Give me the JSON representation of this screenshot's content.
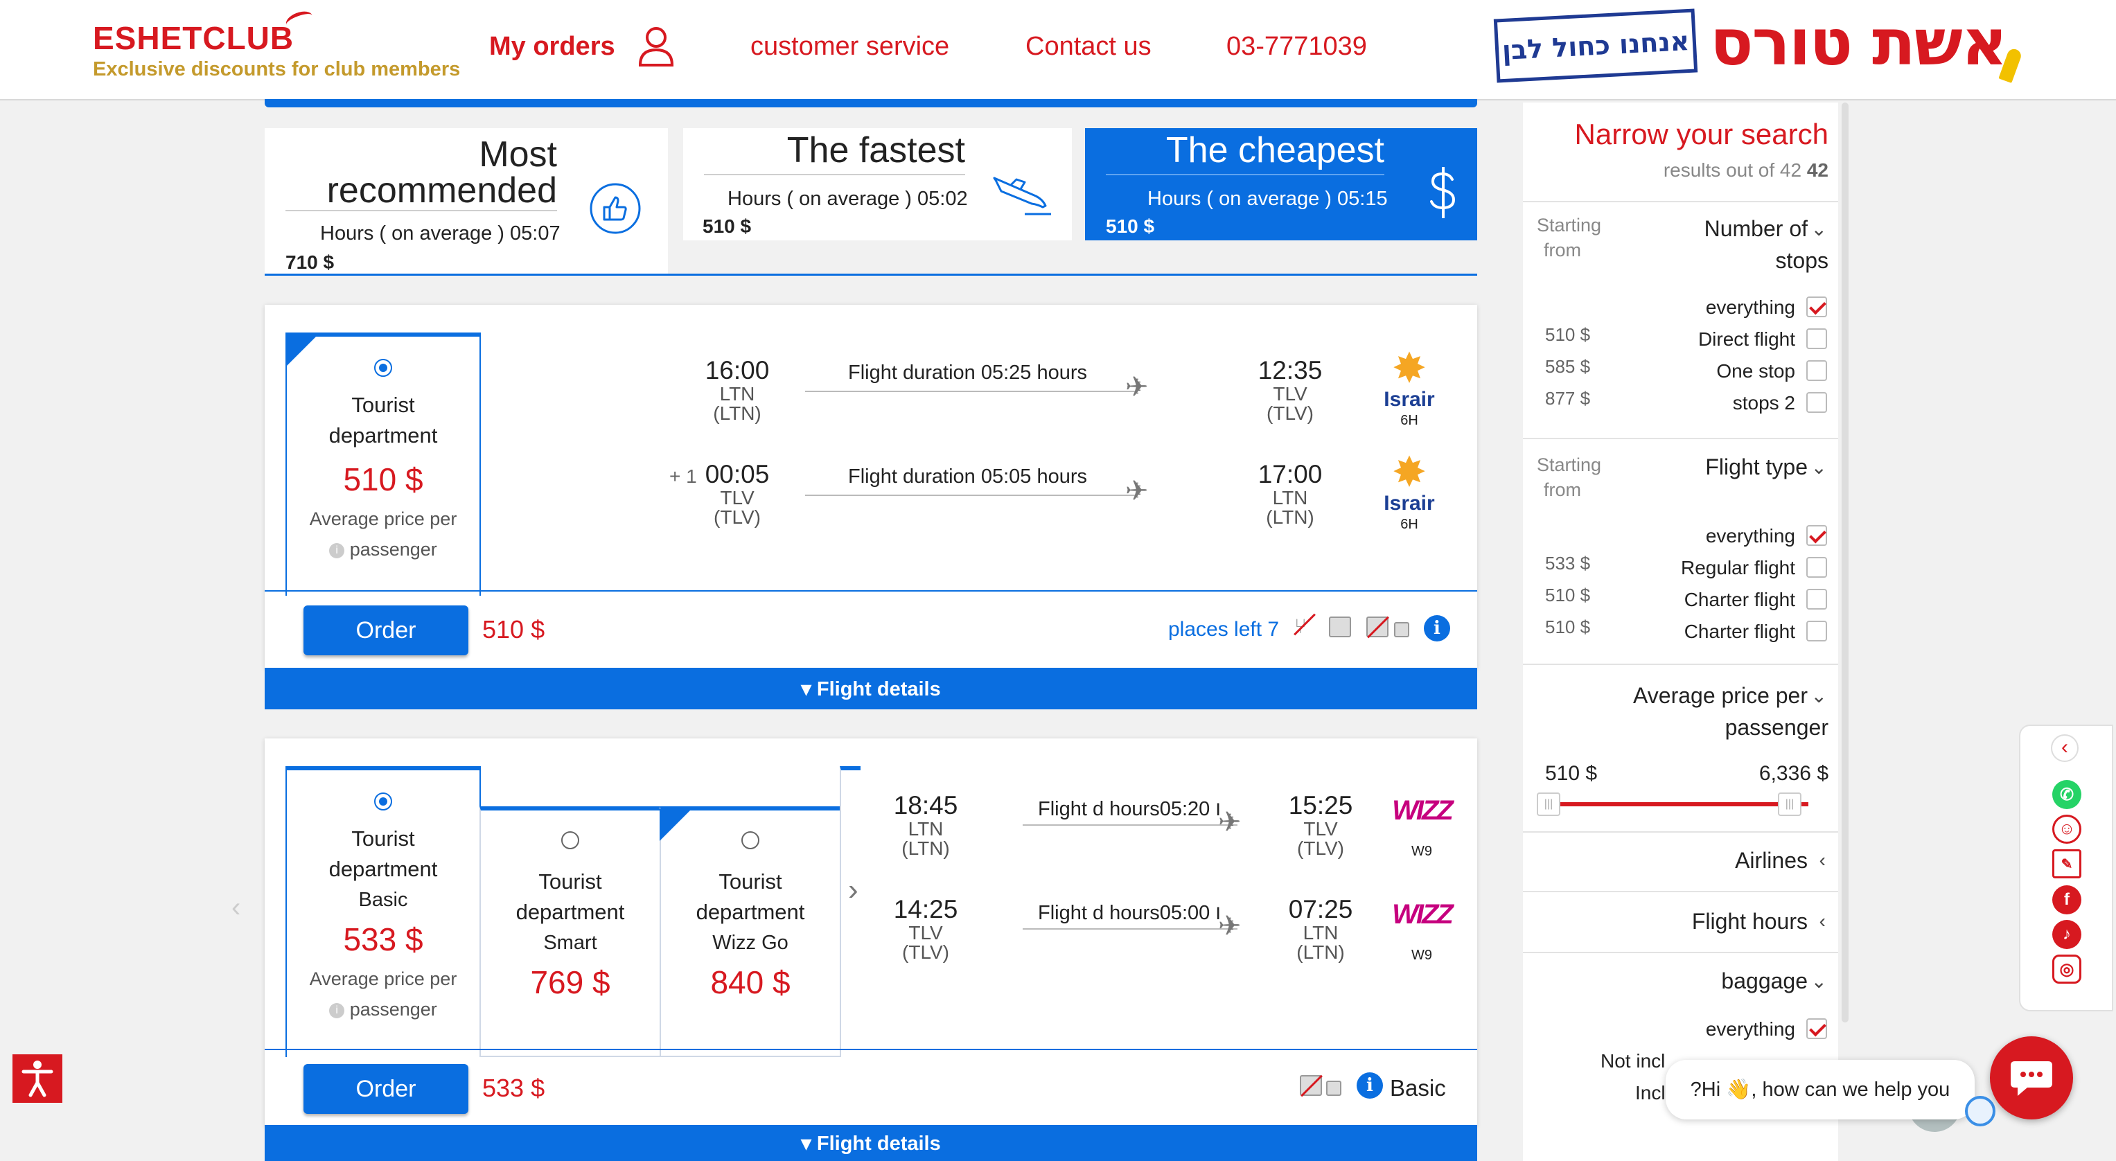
{
  "header": {
    "logo_main": "ESHETCLUB",
    "logo_sub": "Exclusive discounts for club members",
    "my_orders": "My orders",
    "customer_service": "customer service",
    "contact_us": "Contact us",
    "phone": "03-7771039",
    "stamp_text": "אנחנו כחול לבן",
    "brand_text": "אשת טורס"
  },
  "sort_tabs": [
    {
      "title": "Most recommended",
      "title_line1": "Most",
      "title_line2": "recommended",
      "hours": "Hours ( on average ) 05:07",
      "price": "710 $"
    },
    {
      "title": "The fastest",
      "hours": "Hours ( on average ) 05:02",
      "price": "510 $"
    },
    {
      "title": "The cheapest",
      "hours": "Hours ( on average ) 05:15",
      "price": "510 $",
      "active": true
    }
  ],
  "results": [
    {
      "fares": [
        {
          "name_line1": "Tourist",
          "name_line2": "department",
          "price": "510 $",
          "note_line1": "Average price per",
          "note_line2": "passenger",
          "selected": true
        }
      ],
      "legs": [
        {
          "day_offset": "",
          "dep_time": "16:00",
          "dep_code": "LTN",
          "dep_code_paren": "(LTN)",
          "duration": "Flight duration 05:25 hours",
          "arr_time": "12:35",
          "arr_code": "TLV",
          "arr_code_paren": "(TLV)",
          "airline": "Israir",
          "airline_code": "6H"
        },
        {
          "day_offset": "+ 1",
          "dep_time": "00:05",
          "dep_code": "TLV",
          "dep_code_paren": "(TLV)",
          "duration": "Flight duration 05:05 hours",
          "arr_time": "17:00",
          "arr_code": "LTN",
          "arr_code_paren": "(LTN)",
          "airline": "Israir",
          "airline_code": "6H"
        }
      ],
      "order_label": "Order",
      "order_price": "510 $",
      "places_left": "places left 7",
      "details_label": "▾ Flight details"
    },
    {
      "fares": [
        {
          "name_line1": "Tourist",
          "name_line2": "department",
          "name_line3": "Basic",
          "price": "533 $",
          "note_line1": "Average price per",
          "note_line2": "passenger",
          "selected": true
        },
        {
          "name_line1": "Tourist",
          "name_line2": "department",
          "name_line3": "Smart",
          "price": "769 $",
          "selected": false
        },
        {
          "name_line1": "Tourist",
          "name_line2": "department",
          "name_line3": "Wizz Go",
          "price": "840 $",
          "selected": false
        }
      ],
      "legs": [
        {
          "dep_time": "18:45",
          "dep_code": "LTN",
          "dep_code_paren": "(LTN)",
          "duration": "Flight d hoursו 05:20",
          "arr_time": "15:25",
          "arr_code": "TLV",
          "arr_code_paren": "(TLV)",
          "airline": "WIZZ",
          "airline_code": "W9"
        },
        {
          "dep_time": "14:25",
          "dep_code": "TLV",
          "dep_code_paren": "(TLV)",
          "duration": "Flight d hoursו 05:00",
          "arr_time": "07:25",
          "arr_code": "LTN",
          "arr_code_paren": "(LTN)",
          "airline": "WIZZ",
          "airline_code": "W9"
        }
      ],
      "order_label": "Order",
      "order_price": "533 $",
      "fare_label": "Basic",
      "details_label": "▾ Flight details"
    }
  ],
  "sidebar": {
    "title": "Narrow your search",
    "results_prefix": "results out of 42",
    "results_count": "42",
    "stops": {
      "from_line1": "Starting",
      "from_line2": "from",
      "title_line1": "Number of",
      "title_line2": "stops",
      "options": [
        {
          "price": "",
          "label": "everything",
          "checked": true
        },
        {
          "price": "510 $",
          "label": "Direct flight",
          "checked": false
        },
        {
          "price": "585 $",
          "label": "One stop",
          "checked": false
        },
        {
          "price": "877 $",
          "label": "stops 2",
          "checked": false
        }
      ]
    },
    "flight_type": {
      "from_line1": "Starting",
      "from_line2": "from",
      "title": "Flight type",
      "options": [
        {
          "price": "",
          "label": "everything",
          "checked": true
        },
        {
          "price": "533 $",
          "label": "Regular flight",
          "checked": false
        },
        {
          "price": "510 $",
          "label": "Charter flight",
          "checked": false
        },
        {
          "price": "510 $",
          "label": "Charter flight",
          "checked": false
        }
      ]
    },
    "price_filter": {
      "title_line1": "Average price per",
      "title_line2": "passenger",
      "min": "510 $",
      "max": "6,336 $"
    },
    "airlines": "Airlines",
    "flight_hours": "Flight hours",
    "baggage": {
      "title": "baggage",
      "options": [
        {
          "label": "everything",
          "checked": true
        },
        {
          "label": "Not incl",
          "checked": false
        },
        {
          "label": "Incl",
          "checked": false
        }
      ]
    }
  },
  "chat": {
    "message": "?Hi 👋, how can we help you"
  },
  "colors": {
    "brand_red": "#d71920",
    "brand_blue": "#0a6ee0",
    "gold": "#c49a2c"
  }
}
